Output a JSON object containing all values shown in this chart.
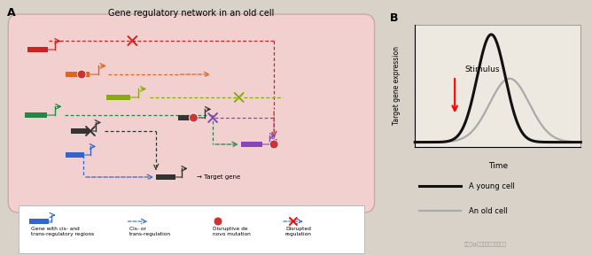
{
  "title_A": "Gene regulatory network in an old cell",
  "bg_outer": "#d8d2c8",
  "bg_cell": "#f2d0d0",
  "cell_edge": "#c8a8a8",
  "bg_legend": "#ffffff",
  "ylabel_B": "Target gene expression",
  "xlabel_B": "Time",
  "stimulus_label": "Stimulus",
  "legend_B": [
    "A young cell",
    "An old cell"
  ],
  "colors": {
    "red": "#cc2222",
    "orange": "#dd6622",
    "olive": "#88aa11",
    "green": "#228844",
    "dark": "#333333",
    "blue": "#3366cc",
    "purple": "#8844bb",
    "mutation": "#cc3333",
    "young": "#111111",
    "old": "#aaaaaa"
  }
}
